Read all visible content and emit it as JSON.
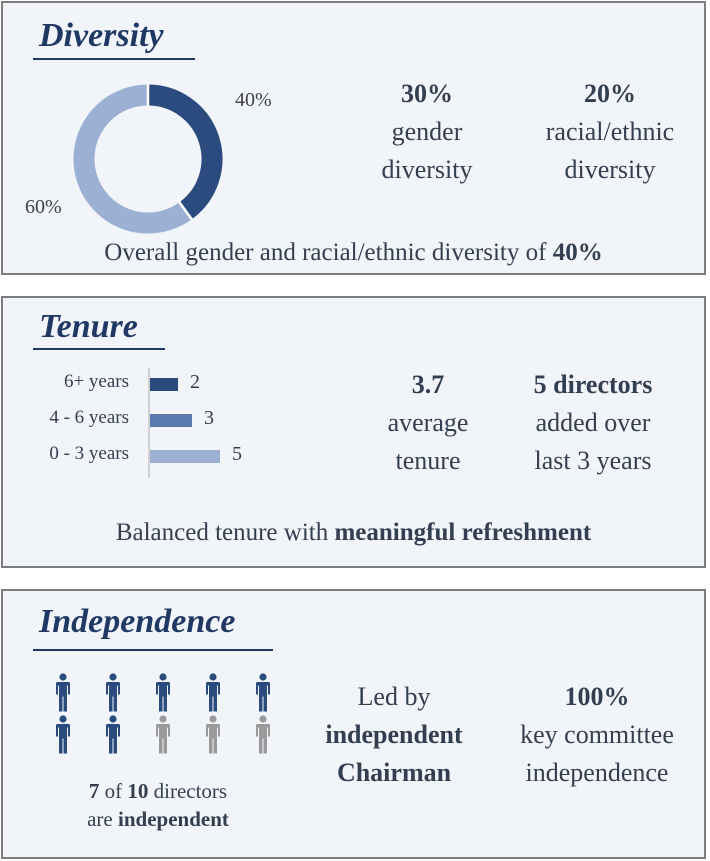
{
  "colors": {
    "dark": "#2b4b7e",
    "mid": "#5b7bae",
    "light": "#9cb0d4",
    "gray": "#9a9a9a",
    "title": "#1f3864",
    "text": "#333f50"
  },
  "diversity": {
    "title": "Diversity",
    "donut_label_a": "40%",
    "donut_label_b": "60%",
    "stat1": {
      "value": "30%",
      "line1": "gender",
      "line2": "diversity"
    },
    "stat2": {
      "value": "20%",
      "line1": "racial/ethnic",
      "line2": "diversity"
    },
    "summary_text": "Overall gender and racial/ethnic diversity of ",
    "summary_value": "40%"
  },
  "tenure": {
    "title": "Tenure",
    "stat1": {
      "value": "3.7",
      "line1": "average",
      "line2": "tenure"
    },
    "stat2": {
      "value": "5 directors",
      "line1": "added over",
      "line2": "last 3 years"
    },
    "summary_text": "Balanced tenure with ",
    "summary_bold": "meaningful refreshment"
  },
  "independence": {
    "title": "Independence",
    "independent_count": "7",
    "of_text": " of ",
    "total_count": "10",
    "directors_text": " directors",
    "are_text": "are ",
    "independent_word": "independent",
    "chair_line1": "Led by",
    "chair_line2": "independent",
    "chair_line3": "Chairman",
    "committee_value": "100%",
    "committee_line1": "key committee",
    "committee_line2": "independence"
  },
  "chart_data": [
    {
      "type": "pie",
      "donut": true,
      "labels": [
        "40%",
        "60%"
      ],
      "values": [
        40,
        60
      ],
      "colors": [
        "#2b4b7e",
        "#9cb0d4"
      ]
    },
    {
      "type": "bar",
      "orientation": "horizontal",
      "categories": [
        "6+ years",
        "4 - 6 years",
        "0 - 3 years"
      ],
      "values": [
        2,
        3,
        5
      ],
      "colors": [
        "#2b4b7e",
        "#5b7bae",
        "#9cb0d4"
      ]
    }
  ]
}
